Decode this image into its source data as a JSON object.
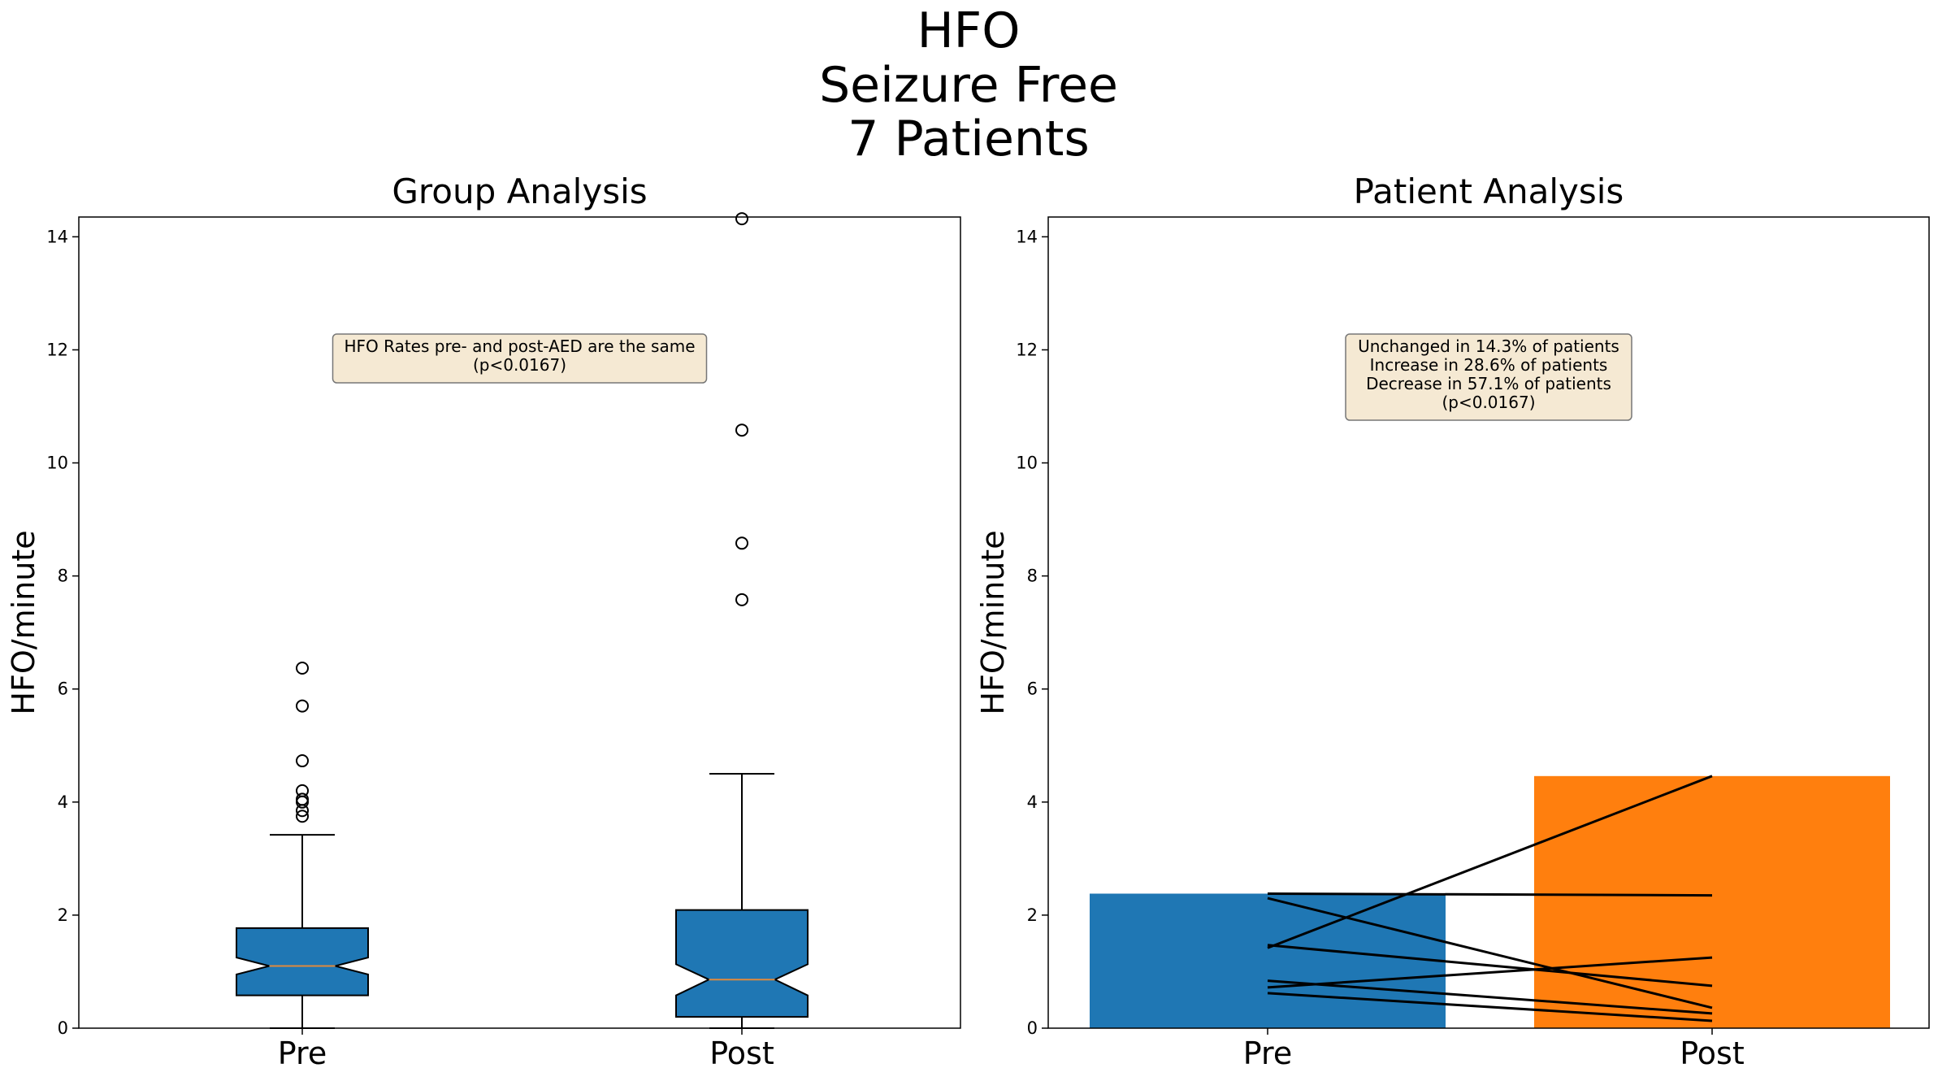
{
  "suptitle": [
    "HFO",
    "Seizure Free",
    "7 Patients"
  ],
  "colors": {
    "pre": "#1f77b4",
    "post": "#ff7f0e",
    "annotation_bg": "#f5e9d3",
    "median": "#e08a3c"
  },
  "chart_data": [
    {
      "type": "boxplot",
      "title": "Group Analysis",
      "ylabel": "HFO/minute",
      "ylim": [
        0,
        14.35
      ],
      "yticks": [
        0,
        2,
        4,
        6,
        8,
        10,
        12,
        14
      ],
      "categories": [
        "Pre",
        "Post"
      ],
      "notched": true,
      "boxes": [
        {
          "name": "Pre",
          "whisker_low": 0.0,
          "q1": 0.58,
          "notch_low": 0.95,
          "median": 1.1,
          "notch_high": 1.25,
          "q3": 1.77,
          "whisker_high": 3.42,
          "outliers": [
            3.75,
            3.85,
            4.0,
            4.05,
            4.2,
            4.73,
            5.7,
            6.37
          ]
        },
        {
          "name": "Post",
          "whisker_low": 0.0,
          "q1": 0.2,
          "notch_low": 0.58,
          "median": 0.86,
          "notch_high": 1.13,
          "q3": 2.09,
          "whisker_high": 4.5,
          "outliers": [
            7.58,
            8.58,
            10.58,
            14.32
          ]
        }
      ],
      "annotation": [
        "HFO Rates pre- and post-AED are the same",
        "(p<0.0167)"
      ]
    },
    {
      "type": "bar",
      "title": "Patient Analysis",
      "ylabel": "HFO/minute",
      "ylim": [
        0,
        14.35
      ],
      "yticks": [
        0,
        2,
        4,
        6,
        8,
        10,
        12,
        14
      ],
      "categories": [
        "Pre",
        "Post"
      ],
      "values": [
        2.38,
        4.46
      ],
      "patient_lines": [
        {
          "pre": 2.38,
          "post": 2.35
        },
        {
          "pre": 2.3,
          "post": 0.36
        },
        {
          "pre": 1.47,
          "post": 0.75
        },
        {
          "pre": 1.42,
          "post": 4.46
        },
        {
          "pre": 0.84,
          "post": 0.26
        },
        {
          "pre": 0.72,
          "post": 1.25
        },
        {
          "pre": 0.62,
          "post": 0.13
        }
      ],
      "annotation": [
        "Unchanged in 14.3% of patients",
        "Increase in 28.6% of patients",
        "Decrease in 57.1% of patients",
        "(p<0.0167)"
      ]
    }
  ]
}
